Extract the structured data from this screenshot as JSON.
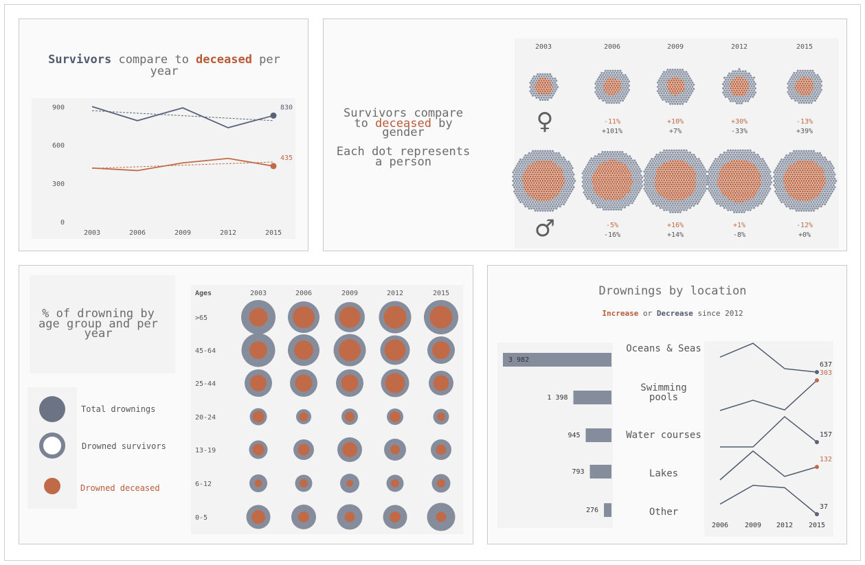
{
  "colors": {
    "survivors": "#596277",
    "survivors_light": "#8a93a3",
    "deceased": "#c06a47",
    "text": "#555555"
  },
  "panel_survivors_deceased": {
    "title_part1": "Survivors",
    "title_part2": " compare to ",
    "title_part3": "deceased",
    "title_part4": " per",
    "title_line2": "year",
    "chart_data": {
      "type": "line",
      "x": [
        "2003",
        "2006",
        "2009",
        "2012",
        "2015"
      ],
      "series": [
        {
          "name": "Survivors",
          "values": [
            900,
            790,
            890,
            735,
            830
          ]
        },
        {
          "name": "deceased",
          "values": [
            420,
            400,
            460,
            495,
            435
          ]
        }
      ],
      "yticks": [
        "900",
        "600",
        "300",
        "0"
      ],
      "ylim": [
        0,
        960
      ],
      "end_labels": [
        "830",
        "435"
      ],
      "trend_lines": true
    }
  },
  "panel_gender": {
    "title_line1": "Survivors compare",
    "title_line2_part1": "to ",
    "title_line2_part2": "deceased",
    "title_line2_part3": " by",
    "title_line3": "gender",
    "subtitle_line1": "Each dot represents",
    "subtitle_line2": "a person",
    "female_symbol": "♀",
    "male_symbol": "♂",
    "chart_data": {
      "type": "dot-matrix",
      "years": [
        "2003",
        "2006",
        "2009",
        "2012",
        "2015"
      ],
      "female": {
        "relative_size_total": [
          0.58,
          0.72,
          0.76,
          0.7,
          0.72
        ],
        "relative_size_deceased": [
          0.36,
          0.36,
          0.36,
          0.4,
          0.38
        ],
        "change_deceased": [
          "",
          "-11%",
          "+10%",
          "+30%",
          "-13%"
        ],
        "change_survivors": [
          "",
          "+101%",
          "+7%",
          "-33%",
          "+39%"
        ]
      },
      "male": {
        "relative_size_total": [
          1.0,
          0.97,
          1.02,
          1.02,
          1.0
        ],
        "relative_size_deceased": [
          0.66,
          0.64,
          0.66,
          0.68,
          0.66
        ],
        "change_deceased": [
          "",
          "-5%",
          "+16%",
          "+1%",
          "-12%"
        ],
        "change_survivors": [
          "",
          "-16%",
          "+14%",
          "-8%",
          "+0%"
        ]
      }
    }
  },
  "panel_age": {
    "title_line1": "% of drowning by",
    "title_line2": "age group and per",
    "title_line3": "year",
    "legend": [
      "Total drownings",
      "Drowned survivors",
      "Drowned deceased"
    ],
    "ages_header": "Ages",
    "chart_data": {
      "type": "bubble",
      "years": [
        "2003",
        "2006",
        "2009",
        "2012",
        "2015"
      ],
      "age_groups": [
        ">65",
        "45-64",
        "25-44",
        "20-24",
        "13-19",
        "6-12",
        "0-5"
      ],
      "relative_size_total": [
        [
          1.0,
          0.92,
          0.88,
          0.94,
          1.0
        ],
        [
          0.98,
          0.92,
          0.94,
          0.86,
          0.8
        ],
        [
          0.8,
          0.8,
          0.8,
          0.82,
          0.72
        ],
        [
          0.5,
          0.44,
          0.48,
          0.48,
          0.46
        ],
        [
          0.54,
          0.6,
          0.72,
          0.64,
          0.6
        ],
        [
          0.52,
          0.5,
          0.56,
          0.5,
          0.54
        ],
        [
          0.7,
          0.72,
          0.74,
          0.7,
          0.82
        ]
      ],
      "relative_size_deceased": [
        [
          0.54,
          0.64,
          0.62,
          0.66,
          0.66
        ],
        [
          0.52,
          0.56,
          0.64,
          0.62,
          0.52
        ],
        [
          0.48,
          0.5,
          0.5,
          0.58,
          0.46
        ],
        [
          0.34,
          0.26,
          0.28,
          0.32,
          0.24
        ],
        [
          0.34,
          0.34,
          0.44,
          0.28,
          0.3
        ],
        [
          0.22,
          0.24,
          0.2,
          0.24,
          0.24
        ],
        [
          0.4,
          0.32,
          0.3,
          0.32,
          0.3
        ]
      ]
    }
  },
  "panel_location": {
    "title": "Drownings by location",
    "subtitle_part1": "Increase",
    "subtitle_part2": " or ",
    "subtitle_part3": "Decrease",
    "subtitle_part4": " since 2012",
    "chart_data": {
      "type": "bar+line",
      "locations": [
        "Oceans & Seas",
        "Swimming pools",
        "Water courses",
        "Lakes",
        "Other"
      ],
      "location_lines": [
        [
          "Oceans & Seas"
        ],
        [
          "Swimming",
          "pools"
        ],
        [
          "Water courses"
        ],
        [
          "Lakes"
        ],
        [
          "Other"
        ]
      ],
      "bar_labels": [
        "3 982",
        "1 398",
        "945",
        "793",
        "276"
      ],
      "bar_values": [
        3982,
        1398,
        945,
        793,
        276
      ],
      "x": [
        "2006",
        "2009",
        "2012",
        "2015"
      ],
      "spark_rel": [
        [
          0.52,
          1.0,
          0.12,
          0.0
        ],
        [
          0.0,
          0.34,
          0.02,
          1.0
        ],
        [
          0.0,
          0.0,
          1.0,
          0.16
        ],
        [
          0.0,
          1.0,
          0.12,
          0.45
        ],
        [
          0.35,
          1.0,
          0.92,
          0.0
        ]
      ],
      "end_labels": [
        "637",
        "303",
        "157",
        "132",
        "37"
      ],
      "end_status": [
        "decrease",
        "increase",
        "decrease",
        "increase",
        "decrease"
      ]
    }
  }
}
